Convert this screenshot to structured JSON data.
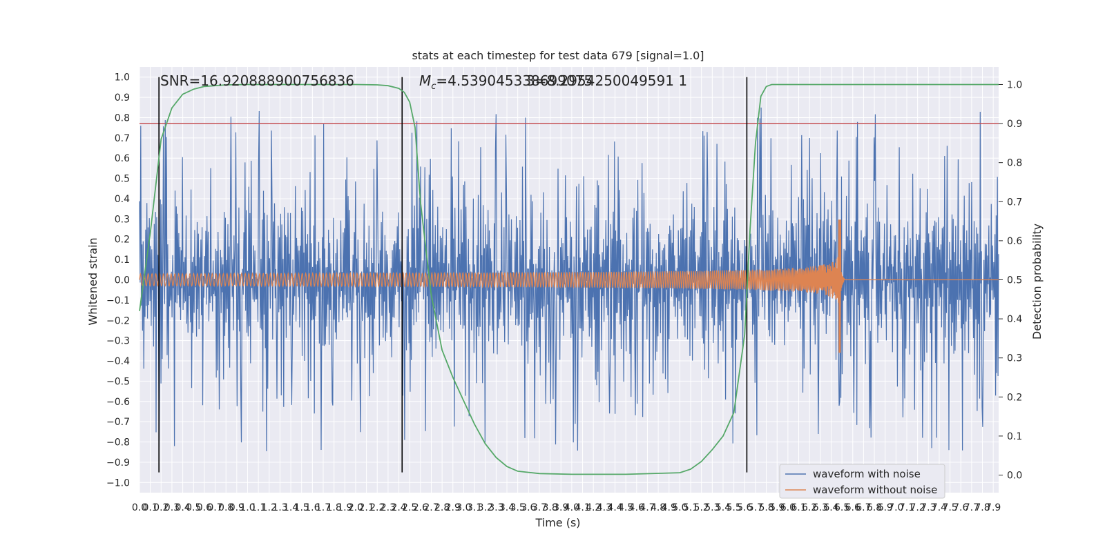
{
  "chart_data": {
    "type": "line",
    "title": "stats at each timestep for test data 679 [signal=1.0]",
    "xlabel": "Time (s)",
    "ylabel_left": "Whitened strain",
    "ylabel_right": "Detection probability",
    "xlim": [
      0.0,
      7.95
    ],
    "ylim_left": [
      -1.05,
      1.05
    ],
    "ylim_right": [
      -0.045,
      1.045
    ],
    "x_ticks": [
      "0.0",
      "0.1",
      "0.2",
      "0.3",
      "0.4",
      "0.5",
      "0.6",
      "0.7",
      "0.8",
      "0.9",
      "1.0",
      "1.1",
      "1.2",
      "1.3",
      "1.4",
      "1.5",
      "1.6",
      "1.7",
      "1.8",
      "1.9",
      "2.0",
      "2.1",
      "2.2",
      "2.3",
      "2.4",
      "2.5",
      "2.6",
      "2.7",
      "2.8",
      "2.9",
      "3.0",
      "3.1",
      "3.2",
      "3.3",
      "3.4",
      "3.5",
      "3.6",
      "3.7",
      "3.8",
      "3.9",
      "4.0",
      "4.1",
      "4.2",
      "4.3",
      "4.4",
      "4.5",
      "4.6",
      "4.7",
      "4.8",
      "4.9",
      "5.0",
      "5.1",
      "5.2",
      "5.3",
      "5.4",
      "5.5",
      "5.6",
      "5.7",
      "5.8",
      "5.9",
      "6.0",
      "6.1",
      "6.2",
      "6.3",
      "6.4",
      "6.5",
      "6.6",
      "6.7",
      "6.8",
      "6.9",
      "7.0",
      "7.1",
      "7.2",
      "7.3",
      "7.4",
      "7.5",
      "7.6",
      "7.7",
      "7.8",
      "7.9"
    ],
    "y_ticks_left": [
      "1.0",
      "0.9",
      "0.8",
      "0.7",
      "0.6",
      "0.5",
      "0.4",
      "0.3",
      "0.2",
      "0.1",
      "0.0",
      "−0.1",
      "−0.2",
      "−0.3",
      "−0.4",
      "−0.5",
      "−0.6",
      "−0.7",
      "−0.8",
      "−0.9",
      "−1.0"
    ],
    "y_ticks_right": [
      "1.0",
      "0.9",
      "0.8",
      "0.7",
      "0.6",
      "0.5",
      "0.4",
      "0.3",
      "0.2",
      "0.1",
      "0.0"
    ],
    "annotations": {
      "snr": "SNR=16.920888900756836",
      "mc_symbol": "M",
      "mc_subscript": "c",
      "mc_value": "=4.539045338699075",
      "overlap": "3=8.2954250049591 1"
    },
    "series": [
      {
        "name": "waveform with noise",
        "color": "#4c72b0",
        "axis": "left",
        "noise_band": 0.45,
        "peak_max": 1.0,
        "peak_min": -0.94
      },
      {
        "name": "waveform without noise",
        "color": "#dd8452",
        "axis": "left",
        "chirp_start_amplitude": 0.03,
        "merger_time": 6.49,
        "merger_peak": 0.33,
        "merger_trough": -0.4
      },
      {
        "name": "detection probability",
        "color": "#55a868",
        "axis": "right",
        "x": [
          0.0,
          0.1,
          0.2,
          0.3,
          0.4,
          0.5,
          0.6,
          0.8,
          1.0,
          1.5,
          2.0,
          2.2,
          2.3,
          2.4,
          2.45,
          2.5,
          2.55,
          2.6,
          2.7,
          2.8,
          2.9,
          3.0,
          3.1,
          3.2,
          3.3,
          3.4,
          3.5,
          3.7,
          4.0,
          4.5,
          5.0,
          5.1,
          5.2,
          5.3,
          5.4,
          5.5,
          5.6,
          5.65,
          5.7,
          5.75,
          5.8,
          5.85,
          5.9,
          6.0,
          7.95
        ],
        "y": [
          0.42,
          0.62,
          0.86,
          0.94,
          0.975,
          0.988,
          0.995,
          0.999,
          1.0,
          1.0,
          1.0,
          0.999,
          0.997,
          0.99,
          0.98,
          0.955,
          0.89,
          0.7,
          0.46,
          0.32,
          0.25,
          0.19,
          0.13,
          0.08,
          0.045,
          0.022,
          0.01,
          0.004,
          0.002,
          0.002,
          0.006,
          0.015,
          0.035,
          0.065,
          0.1,
          0.16,
          0.36,
          0.63,
          0.85,
          0.97,
          0.995,
          1.0,
          1.0,
          1.0,
          1.0
        ]
      }
    ],
    "threshold_line": {
      "value": 0.9,
      "axis": "right",
      "color": "#c44e52"
    },
    "vertical_markers": [
      0.18,
      2.43,
      5.62
    ],
    "marker_range": [
      -0.95,
      1.0
    ],
    "grid": true,
    "legend_position": "bottom-right",
    "colors": {
      "background": "#eaeaf2",
      "grid": "#ffffff",
      "marker": "#000000"
    }
  }
}
